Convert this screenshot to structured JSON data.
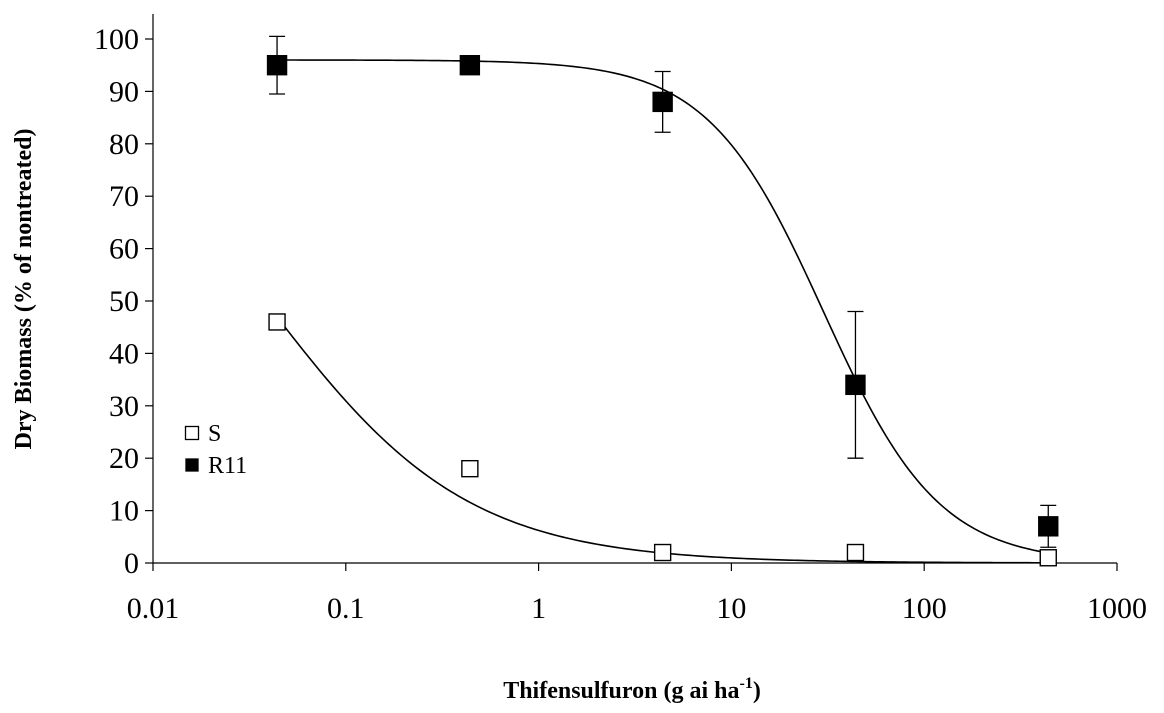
{
  "chart_data": {
    "type": "scatter",
    "title": "",
    "xlabel": "Thifensulfuron (g ai ha",
    "xlabel_superscript": "-1",
    "xlabel_suffix": ")",
    "ylabel": "Dry Biomass (% of nontreated)",
    "x_scale": "log",
    "xlim": [
      0.01,
      1000
    ],
    "ylim": [
      0,
      100
    ],
    "x_ticks": [
      0.01,
      0.1,
      1,
      10,
      100,
      1000
    ],
    "x_tick_labels": [
      "0.01",
      "0.1",
      "1",
      "10",
      "100",
      "1000"
    ],
    "y_ticks": [
      0,
      10,
      20,
      30,
      40,
      50,
      60,
      70,
      80,
      90,
      100
    ],
    "y_tick_labels": [
      "0",
      "10",
      "20",
      "30",
      "40",
      "50",
      "60",
      "70",
      "80",
      "90",
      "100"
    ],
    "grid": false,
    "legend_position": "left",
    "series": [
      {
        "name": "S",
        "marker": "open-square",
        "color": "#000000",
        "x": [
          0.044,
          0.44,
          4.4,
          44,
          440
        ],
        "y": [
          46,
          18,
          2,
          2,
          1
        ],
        "fit": {
          "model": "log-logistic",
          "lower": 0,
          "upper": 100,
          "ed50": 0.038,
          "slope": 0.83
        }
      },
      {
        "name": "R11",
        "marker": "filled-square",
        "color": "#000000",
        "x": [
          0.044,
          0.44,
          4.4,
          44,
          440
        ],
        "y": [
          95,
          95,
          88,
          34,
          7
        ],
        "error": [
          5.5,
          1.5,
          5.8,
          14,
          4
        ],
        "fit": {
          "model": "log-logistic",
          "lower": 0,
          "upper": 96,
          "ed50": 30,
          "slope": 1.45
        }
      }
    ]
  }
}
